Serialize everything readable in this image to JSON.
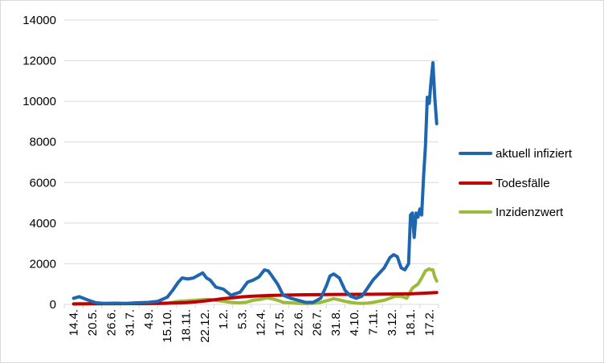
{
  "chart_data": {
    "type": "line",
    "title": "",
    "xlabel": "",
    "ylabel": "",
    "ylim": [
      0,
      14000
    ],
    "yticks": [
      "0",
      "2000",
      "4000",
      "6000",
      "8000",
      "10000",
      "12000",
      "14000"
    ],
    "categories": [
      "14.4.",
      "20.5.",
      "26.6.",
      "31.7.",
      "4.9.",
      "15.10.",
      "18.11.",
      "22.12.",
      "1.2.",
      "5.3.",
      "12.4.",
      "17.5.",
      "22.6.",
      "26.7.",
      "31.8.",
      "4.10.",
      "7.11.",
      "3.12.",
      "18.1.",
      "17.2."
    ],
    "grid": "horizontal",
    "legend_position": "right",
    "series": [
      {
        "name": "aktuell infiziert",
        "color": "#1f66b0",
        "x": [
          0,
          0.3,
          0.8,
          1.2,
          1.6,
          2.2,
          2.8,
          3.4,
          4.0,
          4.5,
          5.0,
          5.3,
          5.6,
          5.8,
          6.1,
          6.4,
          6.7,
          6.9,
          7.1,
          7.3,
          7.6,
          8.0,
          8.4,
          8.9,
          9.3,
          9.6,
          9.9,
          10.2,
          10.4,
          10.6,
          10.9,
          11.2,
          11.6,
          12.0,
          12.4,
          12.8,
          13.2,
          13.5,
          13.7,
          13.9,
          14.2,
          14.5,
          14.8,
          15.1,
          15.4,
          15.7,
          16.0,
          16.3,
          16.6,
          16.9,
          17.1,
          17.3,
          17.5,
          17.7,
          17.9,
          18.0,
          18.1,
          18.2,
          18.3,
          18.4,
          18.5,
          18.6,
          18.7,
          18.8,
          18.9,
          19.0,
          19.1,
          19.2,
          19.3,
          19.4
        ],
        "y": [
          300,
          380,
          200,
          80,
          50,
          60,
          50,
          80,
          100,
          150,
          350,
          700,
          1100,
          1300,
          1250,
          1300,
          1450,
          1550,
          1300,
          1200,
          850,
          750,
          450,
          600,
          1100,
          1200,
          1350,
          1700,
          1650,
          1400,
          1000,
          450,
          300,
          200,
          100,
          100,
          300,
          900,
          1400,
          1500,
          1300,
          700,
          400,
          300,
          400,
          800,
          1200,
          1500,
          1800,
          2300,
          2450,
          2350,
          1800,
          1700,
          2000,
          4400,
          4500,
          3300,
          4500,
          4300,
          4700,
          4400,
          6300,
          7800,
          10200,
          9900,
          11000,
          11900,
          10200,
          8900
        ]
      },
      {
        "name": "Todesfälle",
        "color": "#c00000",
        "x": [
          0,
          1,
          2,
          3,
          4,
          5,
          6,
          6.5,
          7,
          7.5,
          8,
          8.5,
          9,
          9.5,
          10,
          10.5,
          11,
          11.5,
          12,
          13,
          14,
          15,
          16,
          17,
          18,
          19,
          19.4
        ],
        "y": [
          20,
          30,
          35,
          40,
          45,
          60,
          90,
          120,
          170,
          220,
          280,
          330,
          370,
          400,
          420,
          440,
          450,
          460,
          470,
          480,
          490,
          495,
          500,
          510,
          520,
          560,
          580
        ]
      },
      {
        "name": "Inzidenzwert",
        "color": "#9bbb3b",
        "x": [
          0,
          1,
          2,
          3,
          4,
          5,
          5.6,
          6.2,
          6.8,
          7.2,
          7.6,
          8.0,
          8.4,
          8.8,
          9.2,
          9.6,
          10.0,
          10.3,
          10.6,
          10.9,
          11.2,
          11.6,
          12.0,
          12.4,
          12.8,
          13.2,
          13.6,
          13.9,
          14.2,
          14.5,
          14.8,
          15.1,
          15.4,
          15.7,
          16.0,
          16.3,
          16.6,
          16.9,
          17.2,
          17.5,
          17.8,
          18.1,
          18.4,
          18.6,
          18.8,
          19.0,
          19.1,
          19.2,
          19.3,
          19.4
        ],
        "y": [
          30,
          30,
          30,
          30,
          30,
          50,
          150,
          180,
          220,
          250,
          200,
          150,
          100,
          80,
          100,
          200,
          250,
          320,
          280,
          200,
          100,
          80,
          50,
          40,
          50,
          100,
          200,
          280,
          220,
          150,
          100,
          60,
          50,
          60,
          100,
          150,
          200,
          300,
          400,
          400,
          300,
          800,
          1000,
          1300,
          1650,
          1750,
          1700,
          1700,
          1350,
          1150
        ]
      }
    ]
  }
}
